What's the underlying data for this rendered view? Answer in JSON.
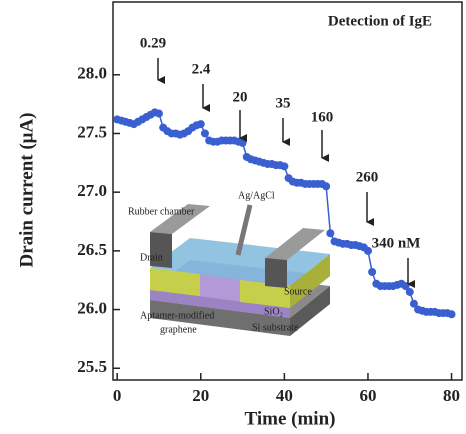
{
  "chart_data": {
    "type": "scatter",
    "title": "Detection of IgE",
    "x_label": "Time (min)",
    "y_label": "Drain current (μA)",
    "xlim": [
      -1,
      82.5
    ],
    "ylim": [
      25.4,
      28.62
    ],
    "xticks": [
      0,
      20,
      40,
      60,
      80
    ],
    "yticks": [
      25.5,
      {
        "value": 26.0,
        "label": "26.0"
      },
      26.5,
      {
        "value": 27.0,
        "label": "27.0"
      },
      27.5,
      {
        "value": 28.0,
        "label": "28.0"
      }
    ],
    "color": "#3a5fd0",
    "x": [
      0,
      1,
      2,
      3,
      4,
      5,
      6,
      7,
      8,
      9,
      10,
      11,
      12,
      13,
      14,
      15,
      16,
      17,
      18,
      19,
      20,
      21,
      22,
      23,
      24,
      25,
      26,
      27,
      28,
      29,
      30,
      31,
      32,
      33,
      34,
      35,
      36,
      37,
      38,
      39,
      40,
      41,
      42,
      43,
      44,
      45,
      46,
      47,
      48,
      49,
      50,
      51,
      52,
      53,
      54,
      55,
      56,
      57,
      58,
      59,
      60,
      61,
      62,
      63,
      64,
      65,
      66,
      67,
      68,
      69,
      70,
      71,
      72,
      73,
      74,
      75,
      76,
      77,
      78,
      79,
      80
    ],
    "values": [
      27.62,
      27.61,
      27.6,
      27.59,
      27.58,
      27.6,
      27.62,
      27.64,
      27.66,
      27.68,
      27.67,
      27.55,
      27.52,
      27.5,
      27.5,
      27.49,
      27.5,
      27.52,
      27.55,
      27.57,
      27.58,
      27.5,
      27.44,
      27.43,
      27.43,
      27.44,
      27.44,
      27.44,
      27.44,
      27.43,
      27.42,
      27.3,
      27.28,
      27.27,
      27.26,
      27.25,
      27.24,
      27.24,
      27.23,
      27.23,
      27.22,
      27.12,
      27.09,
      27.08,
      27.08,
      27.07,
      27.07,
      27.07,
      27.07,
      27.07,
      27.05,
      26.65,
      26.58,
      26.57,
      26.56,
      26.56,
      26.55,
      26.55,
      26.54,
      26.53,
      26.5,
      26.32,
      26.22,
      26.2,
      26.2,
      26.2,
      26.2,
      26.21,
      26.22,
      26.2,
      26.15,
      26.05,
      26.0,
      25.99,
      25.98,
      25.98,
      25.98,
      25.97,
      25.97,
      25.97,
      25.96
    ],
    "annotations": [
      "0.29",
      "2.4",
      "20",
      "35",
      "160",
      "260",
      "340 nM"
    ],
    "inset_labels": [
      "Rubber chamber",
      "Ag/AgCl",
      "Drain",
      "Source",
      "SiO₂",
      "Si substrate",
      "Aptamer-modified",
      "graphene"
    ]
  }
}
